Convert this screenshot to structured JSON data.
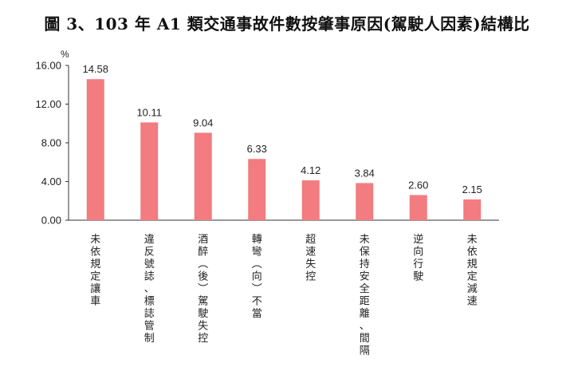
{
  "title": "圖 3、103 年 A1 類交通事故件數按肇事原因(駕駛人因素)結構比",
  "chart_data": {
    "type": "bar",
    "title": "圖 3、103 年 A1 類交通事故件數按肇事原因(駕駛人因素)結構比",
    "ylabel": "%",
    "ylim": [
      0,
      16
    ],
    "yticks": [
      "0.00",
      "4.00",
      "8.00",
      "12.00",
      "16.00"
    ],
    "grid": false,
    "bar_color": "#f27c80",
    "categories": [
      "未依規定讓車",
      "違反號誌、標誌管制",
      "酒醉(後)駕駛失控",
      "轉彎(向)不當",
      "超速失控",
      "未保持安全距離、間隔",
      "逆向行駛",
      "未依規定減速"
    ],
    "values": [
      14.58,
      10.11,
      9.04,
      6.33,
      4.12,
      3.84,
      2.6,
      2.15
    ],
    "value_labels": [
      "14.58",
      "10.11",
      "9.04",
      "6.33",
      "4.12",
      "3.84",
      "2.60",
      "2.15"
    ]
  }
}
